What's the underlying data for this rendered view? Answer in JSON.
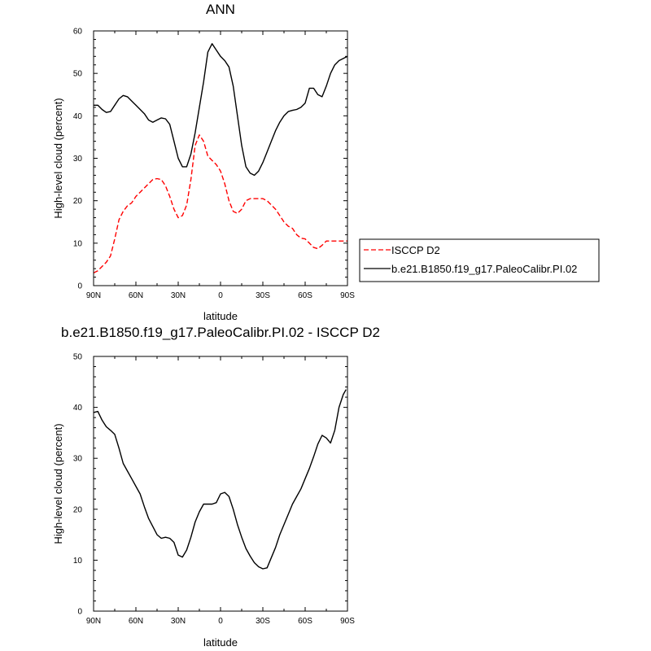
{
  "chart_data": [
    {
      "type": "line",
      "title": "ANN",
      "xlabel": "latitude",
      "ylabel": "High-level cloud (percent)",
      "xlim": [
        90,
        -90
      ],
      "ylim": [
        0,
        60
      ],
      "xticks": [
        90,
        60,
        30,
        0,
        -30,
        -60,
        -90
      ],
      "xticklabels": [
        "90N",
        "60N",
        "30N",
        "0",
        "30S",
        "60S",
        "90S"
      ],
      "yticks": [
        0,
        10,
        20,
        30,
        40,
        50,
        60
      ],
      "grid": false,
      "legend": "outside-right",
      "series": [
        {
          "name": "ISCCP D2",
          "color": "#ff0000",
          "style": "dashed",
          "x": [
            90,
            87,
            84,
            81,
            78,
            75,
            72,
            69,
            66,
            63,
            60,
            57,
            54,
            51,
            48,
            45,
            42,
            39,
            36,
            33,
            30,
            27,
            24,
            21,
            18,
            15,
            12,
            9,
            6,
            3,
            0,
            -3,
            -6,
            -9,
            -12,
            -15,
            -18,
            -21,
            -24,
            -27,
            -30,
            -33,
            -36,
            -39,
            -42,
            -45,
            -48,
            -51,
            -54,
            -57,
            -60,
            -63,
            -66,
            -69,
            -72,
            -75,
            -78,
            -81,
            -84,
            -87,
            -90
          ],
          "y": [
            3,
            3.5,
            4.5,
            5.5,
            7,
            11,
            15.5,
            17.5,
            18.8,
            19.5,
            21,
            22,
            23,
            24,
            25,
            25.2,
            25,
            23.5,
            21,
            18,
            16,
            16.5,
            19,
            25,
            33,
            35.5,
            34,
            30.5,
            29.5,
            28.5,
            27,
            24,
            20,
            17.5,
            17,
            18,
            20,
            20.5,
            20.5,
            20.5,
            20.5,
            20,
            19,
            18,
            16.5,
            15,
            14,
            13.5,
            12,
            11.2,
            11,
            10,
            9,
            8.7,
            9.5,
            10.5,
            10.5,
            10.5,
            10.5,
            10.5,
            10.5
          ]
        },
        {
          "name": "b.e21.B1850.f19_g17.PaleoCalibr.PI.02",
          "color": "#000000",
          "style": "solid",
          "x": [
            90,
            87,
            84,
            81,
            78,
            75,
            72,
            69,
            66,
            63,
            60,
            57,
            54,
            51,
            48,
            45,
            42,
            39,
            36,
            33,
            30,
            27,
            24,
            21,
            18,
            15,
            12,
            9,
            6,
            3,
            0,
            -3,
            -6,
            -9,
            -12,
            -15,
            -18,
            -21,
            -24,
            -27,
            -30,
            -33,
            -36,
            -39,
            -42,
            -45,
            -48,
            -51,
            -54,
            -57,
            -60,
            -63,
            -66,
            -69,
            -72,
            -75,
            -78,
            -81,
            -84,
            -87,
            -90
          ],
          "y": [
            42.5,
            42.5,
            41.5,
            40.8,
            41,
            42.5,
            44,
            44.8,
            44.5,
            43.5,
            42.5,
            41.5,
            40.5,
            39,
            38.5,
            39,
            39.5,
            39.3,
            38,
            34,
            30,
            28,
            28,
            31,
            36,
            42,
            48,
            55,
            57,
            55.5,
            54,
            53,
            51.5,
            47,
            40,
            33,
            28,
            26.5,
            26,
            27,
            29,
            31.5,
            34,
            36.5,
            38.5,
            40,
            41,
            41.3,
            41.5,
            42,
            43,
            46.5,
            46.5,
            45,
            44.5,
            47,
            50,
            52,
            53,
            53.5,
            54
          ]
        }
      ]
    },
    {
      "type": "line",
      "title": "b.e21.B1850.f19_g17.PaleoCalibr.PI.02 - ISCCP D2",
      "xlabel": "latitude",
      "ylabel": "High-level cloud (percent)",
      "xlim": [
        90,
        -90
      ],
      "ylim": [
        0,
        50
      ],
      "xticks": [
        90,
        60,
        30,
        0,
        -30,
        -60,
        -90
      ],
      "xticklabels": [
        "90N",
        "60N",
        "30N",
        "0",
        "30S",
        "60S",
        "90S"
      ],
      "yticks": [
        0,
        10,
        20,
        30,
        40,
        50
      ],
      "grid": false,
      "series": [
        {
          "color": "#000000",
          "style": "solid",
          "x": [
            90,
            87,
            84,
            81,
            78,
            75,
            72,
            69,
            66,
            63,
            60,
            57,
            54,
            51,
            48,
            45,
            42,
            39,
            36,
            33,
            30,
            27,
            24,
            21,
            18,
            15,
            12,
            9,
            6,
            3,
            0,
            -3,
            -6,
            -9,
            -12,
            -15,
            -18,
            -21,
            -24,
            -27,
            -30,
            -33,
            -36,
            -39,
            -42,
            -45,
            -48,
            -51,
            -54,
            -57,
            -60,
            -63,
            -66,
            -69,
            -72,
            -75,
            -78,
            -81,
            -84,
            -87,
            -89
          ],
          "y": [
            39,
            39.2,
            37.5,
            36.2,
            35.5,
            34.7,
            32,
            29,
            27.5,
            26,
            24.5,
            23,
            20.5,
            18.2,
            16.6,
            15,
            14.3,
            14.5,
            14.3,
            13.5,
            11,
            10.6,
            12,
            14.5,
            17.5,
            19.5,
            21,
            21,
            21,
            21.3,
            23,
            23.3,
            22.5,
            20,
            17,
            14.5,
            12.3,
            10.8,
            9.5,
            8.7,
            8.3,
            8.5,
            10.5,
            12.5,
            15,
            17,
            19,
            21,
            22.5,
            24,
            26,
            28,
            30.3,
            32.8,
            34.5,
            34,
            33,
            35.5,
            40,
            42.5,
            43.5
          ]
        }
      ]
    }
  ]
}
